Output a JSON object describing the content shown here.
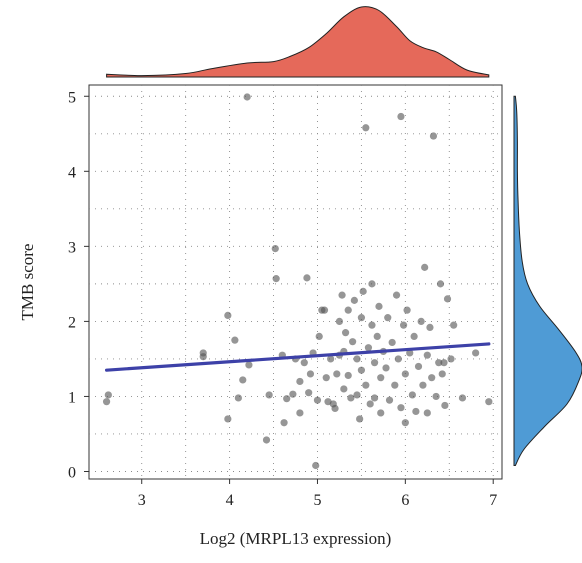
{
  "chart_data": {
    "type": "scatter",
    "xlabel": "Log2 (MRPL13 expression)",
    "ylabel": "TMB score",
    "xlim": [
      2.4,
      7.1
    ],
    "ylim": [
      -0.1,
      5.15
    ],
    "xticks": [
      3,
      4,
      5,
      6,
      7
    ],
    "yticks": [
      0,
      1,
      2,
      3,
      4,
      5
    ],
    "grid": true,
    "colors": {
      "points": "#555555",
      "regression": "#3d41a8",
      "top_density": "#e5695a",
      "right_density": "#4f9bd5"
    },
    "points": [
      [
        2.62,
        1.02
      ],
      [
        2.6,
        0.93
      ],
      [
        3.7,
        1.58
      ],
      [
        3.7,
        1.53
      ],
      [
        3.98,
        2.08
      ],
      [
        3.98,
        0.7
      ],
      [
        4.06,
        1.75
      ],
      [
        4.1,
        0.98
      ],
      [
        4.15,
        1.22
      ],
      [
        4.2,
        4.99
      ],
      [
        4.22,
        1.42
      ],
      [
        4.42,
        0.42
      ],
      [
        4.45,
        1.02
      ],
      [
        4.52,
        2.97
      ],
      [
        4.53,
        2.57
      ],
      [
        4.6,
        1.55
      ],
      [
        4.62,
        0.65
      ],
      [
        4.65,
        0.97
      ],
      [
        4.72,
        1.03
      ],
      [
        4.75,
        1.5
      ],
      [
        4.8,
        1.2
      ],
      [
        4.8,
        0.78
      ],
      [
        4.85,
        1.45
      ],
      [
        4.88,
        2.58
      ],
      [
        4.9,
        1.05
      ],
      [
        4.92,
        1.3
      ],
      [
        4.95,
        1.58
      ],
      [
        4.98,
        0.08
      ],
      [
        5.0,
        0.95
      ],
      [
        5.02,
        1.8
      ],
      [
        5.05,
        2.15
      ],
      [
        5.08,
        2.15
      ],
      [
        5.1,
        1.25
      ],
      [
        5.12,
        0.93
      ],
      [
        5.15,
        1.5
      ],
      [
        5.18,
        0.9
      ],
      [
        5.2,
        0.84
      ],
      [
        5.22,
        1.3
      ],
      [
        5.25,
        1.55
      ],
      [
        5.25,
        2.0
      ],
      [
        5.28,
        2.35
      ],
      [
        5.3,
        1.1
      ],
      [
        5.3,
        1.6
      ],
      [
        5.32,
        1.85
      ],
      [
        5.35,
        2.15
      ],
      [
        5.35,
        1.28
      ],
      [
        5.38,
        0.98
      ],
      [
        5.4,
        1.73
      ],
      [
        5.42,
        2.28
      ],
      [
        5.45,
        1.5
      ],
      [
        5.45,
        1.02
      ],
      [
        5.48,
        0.7
      ],
      [
        5.5,
        2.05
      ],
      [
        5.5,
        1.35
      ],
      [
        5.52,
        2.4
      ],
      [
        5.55,
        1.15
      ],
      [
        5.55,
        4.58
      ],
      [
        5.58,
        1.65
      ],
      [
        5.6,
        0.9
      ],
      [
        5.62,
        2.5
      ],
      [
        5.62,
        1.95
      ],
      [
        5.65,
        1.45
      ],
      [
        5.65,
        0.98
      ],
      [
        5.68,
        1.8
      ],
      [
        5.7,
        2.2
      ],
      [
        5.72,
        1.25
      ],
      [
        5.72,
        0.78
      ],
      [
        5.75,
        1.6
      ],
      [
        5.78,
        1.38
      ],
      [
        5.8,
        2.05
      ],
      [
        5.82,
        0.95
      ],
      [
        5.85,
        1.72
      ],
      [
        5.88,
        1.15
      ],
      [
        5.9,
        2.35
      ],
      [
        5.92,
        1.5
      ],
      [
        5.95,
        0.85
      ],
      [
        5.95,
        4.73
      ],
      [
        5.98,
        1.95
      ],
      [
        6.0,
        0.65
      ],
      [
        6.0,
        1.3
      ],
      [
        6.02,
        2.15
      ],
      [
        6.05,
        1.58
      ],
      [
        6.08,
        1.02
      ],
      [
        6.1,
        1.8
      ],
      [
        6.12,
        0.8
      ],
      [
        6.15,
        1.4
      ],
      [
        6.18,
        2.0
      ],
      [
        6.2,
        1.15
      ],
      [
        6.22,
        2.72
      ],
      [
        6.25,
        0.78
      ],
      [
        6.25,
        1.55
      ],
      [
        6.28,
        1.92
      ],
      [
        6.3,
        1.25
      ],
      [
        6.32,
        4.47
      ],
      [
        6.35,
        1.0
      ],
      [
        6.38,
        1.45
      ],
      [
        6.4,
        2.5
      ],
      [
        6.42,
        1.3
      ],
      [
        6.44,
        1.45
      ],
      [
        6.45,
        0.88
      ],
      [
        6.48,
        2.3
      ],
      [
        6.52,
        1.5
      ],
      [
        6.55,
        1.95
      ],
      [
        6.65,
        0.98
      ],
      [
        6.8,
        1.58
      ],
      [
        6.95,
        0.93
      ]
    ],
    "regression": {
      "x": [
        2.6,
        6.95
      ],
      "y": [
        1.35,
        1.7
      ]
    },
    "top_density": {
      "x": [
        2.6,
        3.0,
        3.5,
        3.8,
        4.2,
        4.5,
        4.7,
        4.9,
        5.1,
        5.3,
        5.5,
        5.7,
        5.9,
        6.05,
        6.2,
        6.35,
        6.5,
        6.7,
        6.95
      ],
      "density": [
        0.04,
        0.02,
        0.05,
        0.12,
        0.2,
        0.22,
        0.3,
        0.42,
        0.62,
        0.86,
        1.0,
        0.95,
        0.72,
        0.52,
        0.42,
        0.36,
        0.25,
        0.1,
        0.03
      ]
    },
    "right_density": {
      "y": [
        0.08,
        0.3,
        0.6,
        0.9,
        1.2,
        1.4,
        1.6,
        1.9,
        2.2,
        2.5,
        2.8,
        3.2,
        3.6,
        4.0,
        4.4,
        4.8,
        5.0
      ],
      "density": [
        0.02,
        0.15,
        0.45,
        0.78,
        0.95,
        1.0,
        0.9,
        0.65,
        0.38,
        0.2,
        0.12,
        0.08,
        0.06,
        0.05,
        0.05,
        0.04,
        0.02
      ]
    }
  }
}
